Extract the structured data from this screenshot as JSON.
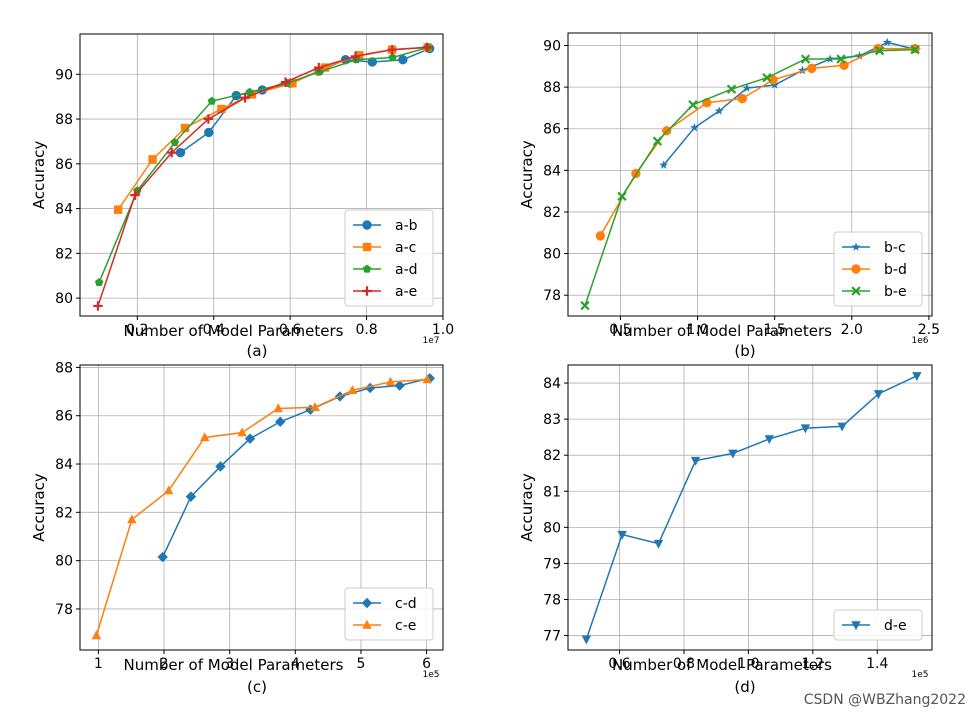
{
  "watermark": "CSDN @WBZhang2022",
  "chart_data": [
    {
      "panel_label": "(a)",
      "type": "line",
      "xlabel": "Number of Model Parameters",
      "ylabel": "Accuracy",
      "x_offset_text": "1e7",
      "xlim": [
        0.05,
        1.0
      ],
      "ylim": [
        79.2,
        91.8
      ],
      "xticks": [
        0.2,
        0.4,
        0.6,
        0.8,
        1.0
      ],
      "xtick_labels": [
        "0.2",
        "0.4",
        "0.6",
        "0.8",
        "1.0"
      ],
      "yticks": [
        80,
        82,
        84,
        86,
        88,
        90
      ],
      "ytick_labels": [
        "80",
        "82",
        "84",
        "86",
        "88",
        "90"
      ],
      "grid": true,
      "legend_position": "lower-right",
      "series": [
        {
          "name": "a-b",
          "color": "#1f77b4",
          "marker": "circle",
          "x": [
            0.313,
            0.387,
            0.459,
            0.527,
            0.6,
            0.676,
            0.745,
            0.815,
            0.895,
            0.965
          ],
          "y": [
            86.5,
            87.4,
            89.05,
            89.3,
            89.6,
            90.15,
            90.65,
            90.55,
            90.65,
            91.15
          ]
        },
        {
          "name": "a-c",
          "color": "#ff7f0e",
          "marker": "square",
          "x": [
            0.15,
            0.24,
            0.325,
            0.42,
            0.5,
            0.606,
            0.691,
            0.781,
            0.867,
            0.96
          ],
          "y": [
            83.95,
            86.2,
            87.6,
            88.45,
            89.1,
            89.6,
            90.3,
            90.85,
            91.1,
            91.2
          ]
        },
        {
          "name": "a-d",
          "color": "#2ca02c",
          "marker": "pentagon",
          "x": [
            0.1,
            0.2,
            0.298,
            0.395,
            0.494,
            0.592,
            0.675,
            0.773,
            0.868,
            0.961
          ],
          "y": [
            80.7,
            84.8,
            86.95,
            88.8,
            89.2,
            89.6,
            90.1,
            90.65,
            90.75,
            91.2
          ]
        },
        {
          "name": "a-e",
          "color": "#d62728",
          "marker": "plus",
          "x": [
            0.097,
            0.194,
            0.29,
            0.386,
            0.482,
            0.588,
            0.675,
            0.771,
            0.867,
            0.958
          ],
          "y": [
            79.65,
            84.6,
            86.5,
            88.0,
            88.95,
            89.65,
            90.3,
            90.8,
            91.1,
            91.2
          ]
        }
      ]
    },
    {
      "panel_label": "(b)",
      "type": "line",
      "xlabel": "Number of Model Parameters",
      "ylabel": "Accuracy",
      "x_offset_text": "1e6",
      "xlim": [
        0.16,
        2.52
      ],
      "ylim": [
        77.0,
        90.6
      ],
      "xticks": [
        0.5,
        1.0,
        1.5,
        2.0,
        2.5
      ],
      "xtick_labels": [
        "0.5",
        "1.0",
        "1.5",
        "2.0",
        "2.5"
      ],
      "yticks": [
        78,
        80,
        82,
        84,
        86,
        88,
        90
      ],
      "ytick_labels": [
        "78",
        "80",
        "82",
        "84",
        "86",
        "88",
        "90"
      ],
      "grid": true,
      "legend_position": "lower-right",
      "series": [
        {
          "name": "b-c",
          "color": "#1f77b4",
          "marker": "star",
          "x": [
            0.78,
            0.98,
            1.14,
            1.32,
            1.5,
            1.68,
            1.86,
            2.05,
            2.23,
            2.42
          ],
          "y": [
            84.25,
            86.05,
            86.85,
            87.95,
            88.1,
            88.8,
            89.35,
            89.5,
            90.15,
            89.8
          ]
        },
        {
          "name": "b-d",
          "color": "#ff7f0e",
          "marker": "circle",
          "x": [
            0.37,
            0.6,
            0.8,
            1.06,
            1.29,
            1.49,
            1.74,
            1.95,
            2.17,
            2.41
          ],
          "y": [
            80.85,
            83.85,
            85.9,
            87.25,
            87.45,
            88.35,
            88.9,
            89.05,
            89.85,
            89.85
          ]
        },
        {
          "name": "b-e",
          "color": "#2ca02c",
          "marker": "x",
          "x": [
            0.27,
            0.51,
            0.74,
            0.97,
            1.22,
            1.45,
            1.7,
            1.93,
            2.18,
            2.41
          ],
          "y": [
            77.5,
            82.75,
            85.4,
            87.15,
            87.9,
            88.45,
            89.35,
            89.35,
            89.75,
            89.8
          ]
        }
      ]
    },
    {
      "panel_label": "(c)",
      "type": "line",
      "xlabel": "Number of Model Parameters",
      "ylabel": "Accuracy",
      "x_offset_text": "1e5",
      "xlim": [
        0.72,
        6.25
      ],
      "ylim": [
        76.3,
        88.1
      ],
      "xticks": [
        1,
        2,
        3,
        4,
        5,
        6
      ],
      "xtick_labels": [
        "1",
        "2",
        "3",
        "4",
        "5",
        "6"
      ],
      "yticks": [
        78,
        80,
        82,
        84,
        86,
        88
      ],
      "ytick_labels": [
        "78",
        "80",
        "82",
        "84",
        "86",
        "88"
      ],
      "grid": true,
      "legend_position": "lower-right",
      "series": [
        {
          "name": "c-d",
          "color": "#1f77b4",
          "marker": "diamond",
          "x": [
            1.98,
            2.41,
            2.86,
            3.31,
            3.77,
            4.23,
            4.68,
            5.14,
            5.59,
            6.05
          ],
          "y": [
            80.15,
            82.65,
            83.9,
            85.05,
            85.75,
            86.25,
            86.8,
            87.15,
            87.25,
            87.55
          ]
        },
        {
          "name": "c-e",
          "color": "#ff7f0e",
          "marker": "triangle-up",
          "x": [
            0.97,
            1.51,
            2.07,
            2.62,
            3.19,
            3.74,
            4.3,
            4.87,
            5.45,
            6.01
          ],
          "y": [
            76.9,
            81.7,
            82.9,
            85.1,
            85.3,
            86.3,
            86.35,
            87.05,
            87.4,
            87.5
          ]
        }
      ]
    },
    {
      "panel_label": "(d)",
      "type": "line",
      "xlabel": "Number of Model Parameters",
      "ylabel": "Accuracy",
      "x_offset_text": "1e5",
      "xlim": [
        0.44,
        1.57
      ],
      "ylim": [
        76.6,
        84.5
      ],
      "xticks": [
        0.6,
        0.8,
        1.0,
        1.2,
        1.4
      ],
      "xtick_labels": [
        "0.6",
        "0.8",
        "1.0",
        "1.2",
        "1.4"
      ],
      "yticks": [
        77,
        78,
        79,
        80,
        81,
        82,
        83,
        84
      ],
      "ytick_labels": [
        "77",
        "78",
        "79",
        "80",
        "81",
        "82",
        "83",
        "84"
      ],
      "grid": true,
      "legend_position": "lower-right",
      "series": [
        {
          "name": "d-e",
          "color": "#1f77b4",
          "marker": "triangle-down",
          "x": [
            0.497,
            0.608,
            0.721,
            0.836,
            0.952,
            1.065,
            1.177,
            1.291,
            1.404,
            1.523
          ],
          "y": [
            76.9,
            79.8,
            79.55,
            81.85,
            82.05,
            82.45,
            82.75,
            82.8,
            83.7,
            84.2
          ]
        }
      ]
    }
  ]
}
